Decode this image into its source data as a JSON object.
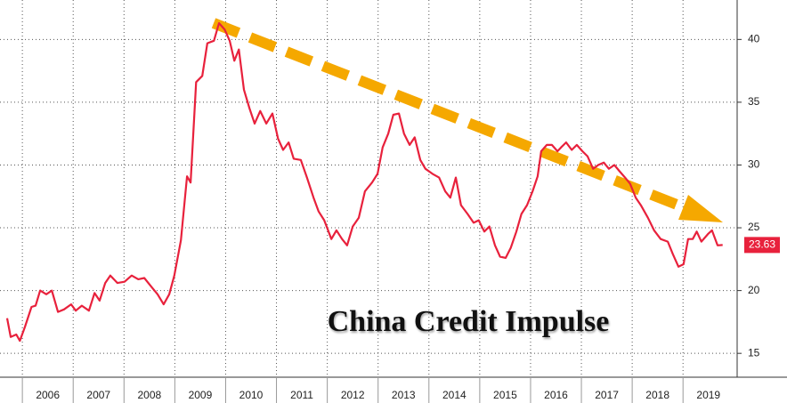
{
  "chart_data": {
    "type": "line",
    "annotation": "China Credit Impulse",
    "x": [
      2005.7,
      2005.77,
      2005.88,
      2005.95,
      2006.05,
      2006.18,
      2006.26,
      2006.35,
      2006.47,
      2006.58,
      2006.7,
      2006.82,
      2006.96,
      2007.05,
      2007.17,
      2007.31,
      2007.42,
      2007.52,
      2007.63,
      2007.73,
      2007.87,
      2008.01,
      2008.15,
      2008.28,
      2008.4,
      2008.54,
      2008.66,
      2008.78,
      2008.89,
      2008.99,
      2009.12,
      2009.24,
      2009.31,
      2009.42,
      2009.54,
      2009.64,
      2009.77,
      2009.87,
      2009.98,
      2010.08,
      2010.17,
      2010.26,
      2010.36,
      2010.47,
      2010.57,
      2010.68,
      2010.8,
      2010.92,
      2011.03,
      2011.13,
      2011.24,
      2011.34,
      2011.48,
      2011.6,
      2011.73,
      2011.83,
      2011.94,
      2012.08,
      2012.18,
      2012.29,
      2012.39,
      2012.5,
      2012.62,
      2012.74,
      2012.88,
      2012.99,
      2013.09,
      2013.2,
      2013.3,
      2013.41,
      2013.51,
      2013.62,
      2013.72,
      2013.83,
      2013.93,
      2014.07,
      2014.2,
      2014.32,
      2014.42,
      2014.53,
      2014.63,
      2014.76,
      2014.88,
      2014.98,
      2015.09,
      2015.19,
      2015.3,
      2015.4,
      2015.51,
      2015.61,
      2015.72,
      2015.82,
      2015.93,
      2016.04,
      2016.14,
      2016.21,
      2016.32,
      2016.42,
      2016.53,
      2016.6,
      2016.7,
      2016.81,
      2016.91,
      2017.02,
      2017.12,
      2017.23,
      2017.33,
      2017.44,
      2017.54,
      2017.65,
      2017.75,
      2017.86,
      2017.96,
      2018.07,
      2018.17,
      2018.31,
      2018.43,
      2018.56,
      2018.7,
      2018.8,
      2018.91,
      2019.01,
      2019.1,
      2019.19,
      2019.27,
      2019.36,
      2019.49,
      2019.57,
      2019.68,
      2019.78
    ],
    "series": [
      {
        "color": "#e8213c",
        "values": [
          17.8,
          16.3,
          16.5,
          16.0,
          17.1,
          18.7,
          18.8,
          20.0,
          19.7,
          20.0,
          18.3,
          18.5,
          18.9,
          18.4,
          18.8,
          18.4,
          19.8,
          19.2,
          20.6,
          21.2,
          20.6,
          20.7,
          21.2,
          20.9,
          21.0,
          20.3,
          19.7,
          18.9,
          19.7,
          21.2,
          24.0,
          29.1,
          28.6,
          36.6,
          37.1,
          39.7,
          39.9,
          41.3,
          40.8,
          39.9,
          38.3,
          39.2,
          36.0,
          34.5,
          33.3,
          34.3,
          33.3,
          34.1,
          32.1,
          31.2,
          31.8,
          30.5,
          30.4,
          29.0,
          27.4,
          26.3,
          25.6,
          24.1,
          24.8,
          24.1,
          23.6,
          25.1,
          25.8,
          27.9,
          28.6,
          29.3,
          31.4,
          32.5,
          34.0,
          34.1,
          32.5,
          31.6,
          32.2,
          30.4,
          29.7,
          29.3,
          29.0,
          27.9,
          27.4,
          29.0,
          26.8,
          26.1,
          25.4,
          25.6,
          24.7,
          25.1,
          23.6,
          22.7,
          22.6,
          23.4,
          24.7,
          26.1,
          26.8,
          27.9,
          29.1,
          31.1,
          31.6,
          31.6,
          31.1,
          31.4,
          31.8,
          31.2,
          31.6,
          31.1,
          30.7,
          29.7,
          30.0,
          30.2,
          29.7,
          30.0,
          29.5,
          29.0,
          28.5,
          27.4,
          26.8,
          25.8,
          24.8,
          24.1,
          23.9,
          22.9,
          21.9,
          22.1,
          24.1,
          24.1,
          24.7,
          23.9,
          24.5,
          24.8,
          23.6,
          23.63
        ]
      }
    ],
    "xlim": [
      2005.7,
      2020.03
    ],
    "xticks": [
      2006,
      2007,
      2008,
      2009,
      2010,
      2011,
      2012,
      2013,
      2014,
      2015,
      2016,
      2017,
      2018,
      2019
    ],
    "ylim": [
      13.1,
      43
    ],
    "yticks": [
      15,
      20,
      25,
      30,
      35,
      40
    ],
    "grid": true
  }
}
